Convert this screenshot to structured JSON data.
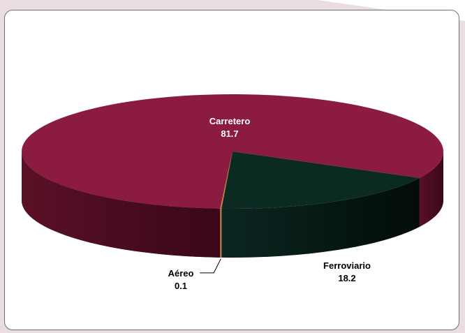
{
  "chart_data": {
    "type": "pie",
    "title": "",
    "slices": [
      {
        "label": "Carretero",
        "value": 81.7,
        "color": "#8b1c3f"
      },
      {
        "label": "Ferroviario",
        "value": 18.2,
        "color": "#0a2a22"
      },
      {
        "label": "Aéreo",
        "value": 0.1,
        "color": "#c87a3a"
      }
    ],
    "label_colors": {
      "Carretero": "#ffffff",
      "Ferroviario": "#000000",
      "Aéreo": "#000000"
    },
    "legend": "none"
  }
}
